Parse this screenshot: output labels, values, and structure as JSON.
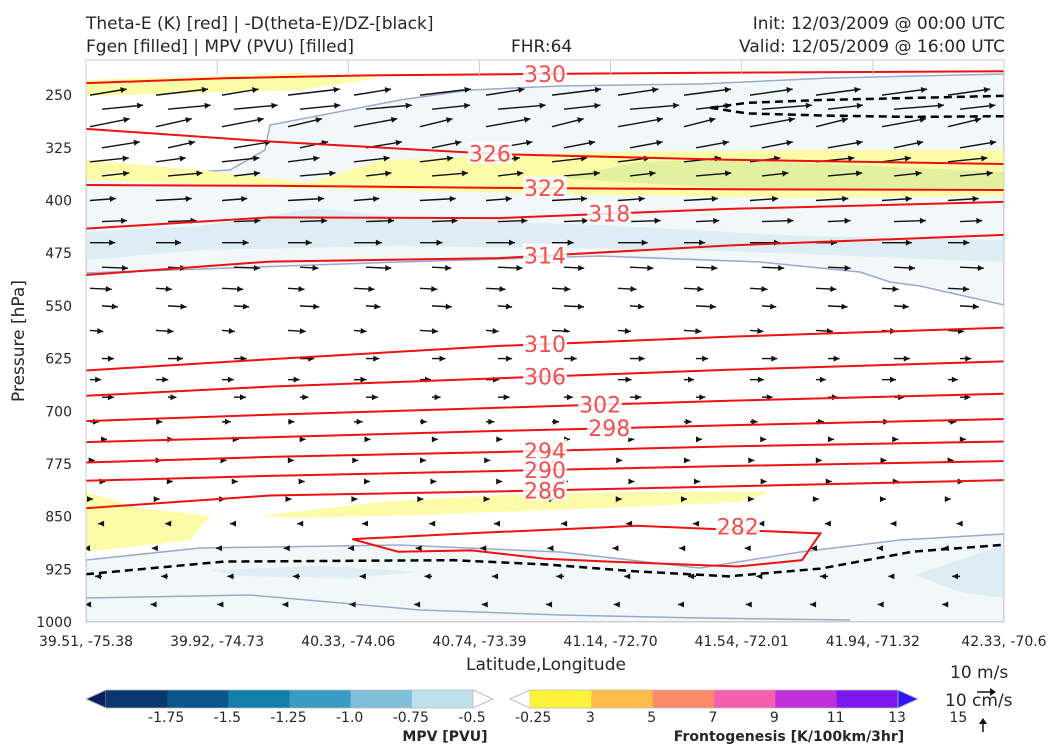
{
  "header": {
    "title_left_1": "Theta-E (K) [red] | -D(theta-E)/DZ-[black]",
    "title_left_2": "Fgen [filled] | MPV (PVU) [filled]",
    "fhr": "FHR:64",
    "init": "Init: 12/03/2009 @ 00:00 UTC",
    "valid": "Valid: 12/05/2009 @ 16:00 UTC"
  },
  "chart_data": {
    "type": "cross-section",
    "xlabel": "Latitude,Longitude",
    "ylabel": "Pressure [hPa]",
    "x_ticks": [
      "39.51, -75.38",
      "39.92, -74.73",
      "40.33, -74.06",
      "40.74, -73.39",
      "41.14, -72.70",
      "41.54, -72.01",
      "41.94, -71.32",
      "42.33, -70.6"
    ],
    "y_ticks": [
      250,
      325,
      400,
      475,
      550,
      625,
      700,
      775,
      850,
      925,
      1000
    ],
    "ylim": [
      1000,
      200
    ],
    "theta_e_contours": [
      {
        "label": "330",
        "pts": [
          [
            0,
            233
          ],
          [
            0.15,
            226
          ],
          [
            0.3,
            222
          ],
          [
            0.48,
            220
          ],
          [
            0.7,
            218
          ],
          [
            1,
            216
          ]
        ],
        "label_at": 0.5
      },
      {
        "label": "326",
        "pts": [
          [
            0,
            298
          ],
          [
            0.2,
            316
          ],
          [
            0.45,
            334
          ],
          [
            0.7,
            342
          ],
          [
            1,
            348
          ]
        ],
        "label_at": 0.44
      },
      {
        "label": "322",
        "pts": [
          [
            0,
            378
          ],
          [
            0.2,
            379
          ],
          [
            0.45,
            382
          ],
          [
            0.7,
            384
          ],
          [
            1,
            385
          ]
        ],
        "label_at": 0.5
      },
      {
        "label": "318",
        "pts": [
          [
            0,
            440
          ],
          [
            0.2,
            424
          ],
          [
            0.45,
            425
          ],
          [
            0.7,
            412
          ],
          [
            1,
            402
          ]
        ],
        "label_at": 0.57
      },
      {
        "label": "314",
        "pts": [
          [
            0,
            506
          ],
          [
            0.2,
            487
          ],
          [
            0.45,
            482
          ],
          [
            0.7,
            464
          ],
          [
            1,
            449
          ]
        ],
        "label_at": 0.5
      },
      {
        "label": "310",
        "pts": [
          [
            0,
            642
          ],
          [
            0.2,
            626
          ],
          [
            0.45,
            607
          ],
          [
            0.7,
            594
          ],
          [
            1,
            581
          ]
        ],
        "label_at": 0.5
      },
      {
        "label": "306",
        "pts": [
          [
            0,
            678
          ],
          [
            0.2,
            665
          ],
          [
            0.45,
            653
          ],
          [
            0.7,
            641
          ],
          [
            1,
            629
          ]
        ],
        "label_at": 0.5
      },
      {
        "label": "302",
        "pts": [
          [
            0,
            714
          ],
          [
            0.2,
            705
          ],
          [
            0.45,
            695
          ],
          [
            0.7,
            685
          ],
          [
            1,
            675
          ]
        ],
        "label_at": 0.56
      },
      {
        "label": "298",
        "pts": [
          [
            0,
            744
          ],
          [
            0.2,
            737
          ],
          [
            0.45,
            728
          ],
          [
            0.7,
            720
          ],
          [
            1,
            711
          ]
        ],
        "label_at": 0.57
      },
      {
        "label": "294",
        "pts": [
          [
            0,
            773
          ],
          [
            0.2,
            765
          ],
          [
            0.45,
            758
          ],
          [
            0.7,
            750
          ],
          [
            1,
            743
          ]
        ],
        "label_at": 0.5
      },
      {
        "label": "290",
        "pts": [
          [
            0,
            799
          ],
          [
            0.2,
            792
          ],
          [
            0.45,
            785
          ],
          [
            0.7,
            778
          ],
          [
            1,
            771
          ]
        ],
        "label_at": 0.5
      },
      {
        "label": "286",
        "pts": [
          [
            0,
            838
          ],
          [
            0.2,
            820
          ],
          [
            0.45,
            814
          ],
          [
            0.7,
            807
          ],
          [
            1,
            798
          ]
        ],
        "label_at": 0.5
      }
    ],
    "theta_e_282": {
      "label": "282",
      "pts": [
        [
          0.29,
          882
        ],
        [
          0.43,
          873
        ],
        [
          0.57,
          865
        ],
        [
          0.6,
          863
        ],
        [
          0.8,
          874
        ],
        [
          0.78,
          912
        ],
        [
          0.71,
          921
        ],
        [
          0.57,
          914
        ],
        [
          0.5,
          910
        ],
        [
          0.42,
          898
        ],
        [
          0.34,
          900
        ],
        [
          0.29,
          882
        ]
      ],
      "label_at": 0.71
    },
    "stability_dashed": [
      {
        "pts": [
          [
            0.68,
            268
          ],
          [
            0.72,
            261
          ],
          [
            0.8,
            257
          ],
          [
            0.9,
            254
          ],
          [
            1,
            251
          ]
        ]
      },
      {
        "pts": [
          [
            0.68,
            268
          ],
          [
            0.72,
            276
          ],
          [
            0.8,
            279
          ],
          [
            0.9,
            281
          ],
          [
            1,
            280
          ]
        ]
      },
      {
        "pts": [
          [
            0,
            932
          ],
          [
            0.15,
            914
          ],
          [
            0.4,
            912
          ],
          [
            0.5,
            918
          ],
          [
            0.6,
            928
          ],
          [
            0.7,
            935
          ],
          [
            0.8,
            924
          ],
          [
            0.9,
            900
          ],
          [
            1,
            890
          ]
        ]
      }
    ],
    "mpv_colorbar": {
      "label": "MPV [PVU]",
      "levels": [
        "-1.75",
        "-1.5",
        "-1.25",
        "-1.0",
        "-0.75",
        "-0.5",
        "-0.25"
      ],
      "colors": [
        "#0a1f5c",
        "#08386e",
        "#09568b",
        "#137ea8",
        "#3a9bc4",
        "#80bfd9",
        "#bee0ea",
        "#ffffff"
      ]
    },
    "fgen_colorbar": {
      "label": "Frontogenesis [K/100km/3hr]",
      "levels": [
        "3",
        "5",
        "7",
        "9",
        "11",
        "13",
        "15"
      ],
      "colors": [
        "#ffffff",
        "#fdf13a",
        "#fdbd48",
        "#fb8a6b",
        "#f65fae",
        "#c030d8",
        "#7b18f0",
        "#2c16f4"
      ]
    },
    "quiver_keys": [
      "10 m/s",
      "10 cm/s"
    ]
  }
}
